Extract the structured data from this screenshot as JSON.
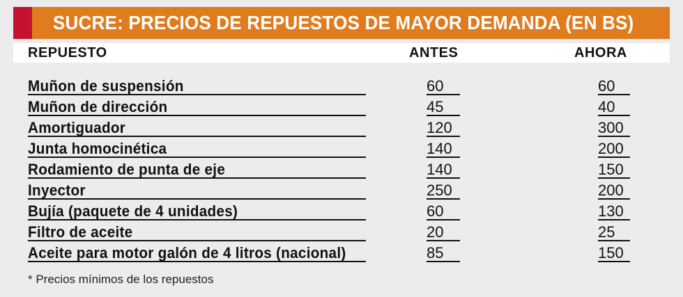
{
  "title": "SUCRE: PRECIOS DE REPUESTOS DE MAYOR DEMANDA (EN BS)",
  "colors": {
    "title_bar": "#e07c1e",
    "accent": "#c4122f",
    "background": "#ececec"
  },
  "columns": {
    "name": "REPUESTO",
    "before": "ANTES",
    "now": "AHORA"
  },
  "rows": [
    {
      "name": "Muñon de suspensión",
      "before": "60",
      "now": "60"
    },
    {
      "name": "Muñon de dirección",
      "before": "45",
      "now": "40"
    },
    {
      "name": "Amortiguador",
      "before": "120",
      "now": "300"
    },
    {
      "name": "Junta homocinética",
      "before": "140",
      "now": "200"
    },
    {
      "name": "Rodamiento de punta de eje",
      "before": "140",
      "now": "150"
    },
    {
      "name": "Inyector",
      "before": "250",
      "now": "200"
    },
    {
      "name": "Bujía (paquete de 4 unidades)",
      "before": "60",
      "now": "130"
    },
    {
      "name": "Filtro de aceite",
      "before": "20",
      "now": "25"
    },
    {
      "name": "Aceite para motor galón de 4 litros (nacional)",
      "before": "85",
      "now": "150"
    }
  ],
  "footnote": "* Precios mínimos de los repuestos"
}
